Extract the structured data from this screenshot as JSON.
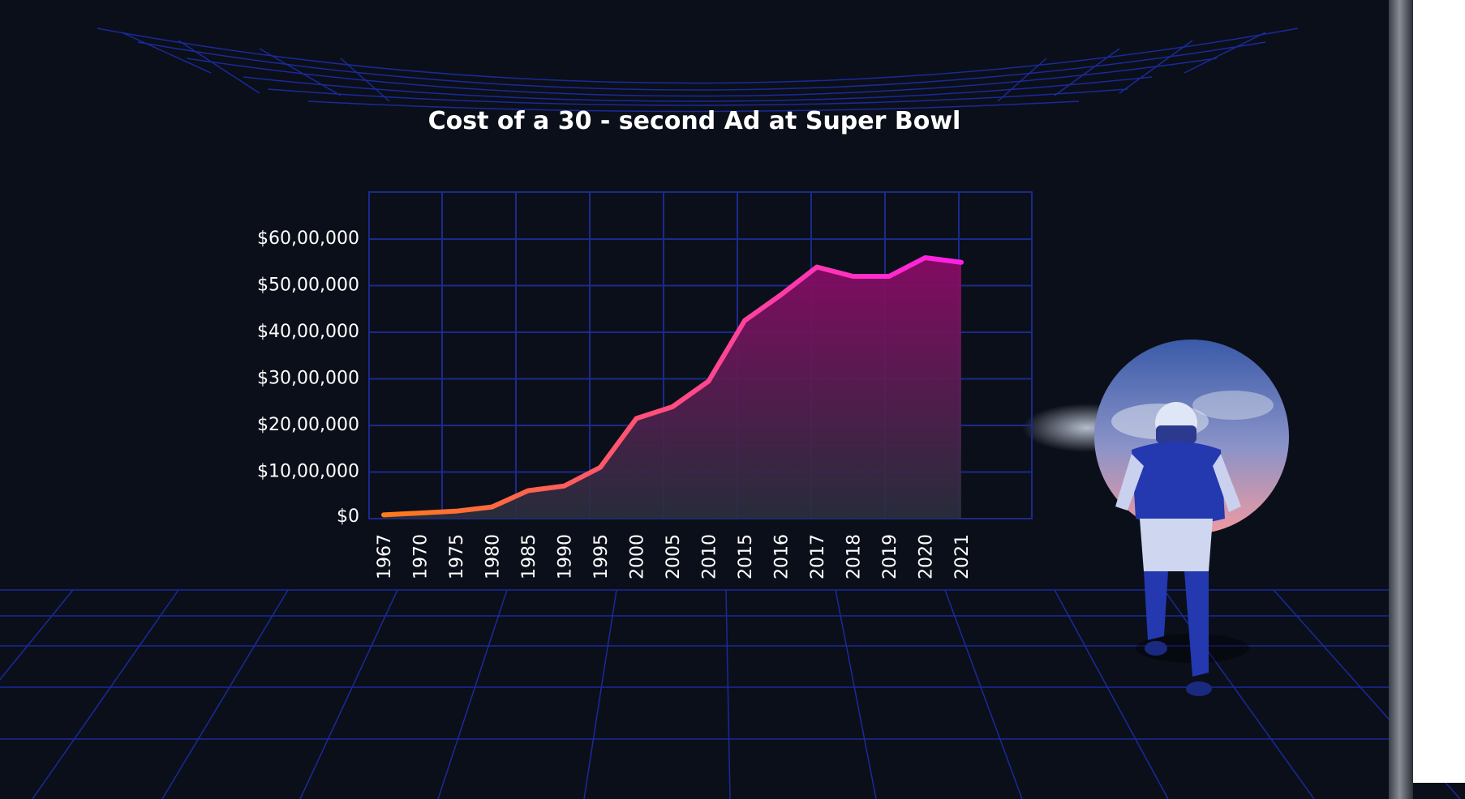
{
  "chart_data": {
    "type": "area",
    "title": "Cost of a 30 - second Ad at Super Bowl",
    "categories": [
      "1967",
      "1970",
      "1975",
      "1980",
      "1985",
      "1990",
      "1995",
      "2000",
      "2005",
      "2010",
      "2015",
      "2016",
      "2017",
      "2018",
      "2019",
      "2020",
      "2021"
    ],
    "series": [
      {
        "values": [
          80000,
          120000,
          160000,
          250000,
          600000,
          700000,
          1100000,
          2150000,
          2400000,
          2950000,
          4250000,
          4800000,
          5400000,
          5200000,
          5200000,
          5600000,
          5500000
        ]
      }
    ],
    "y_ticks": [
      {
        "value": 0,
        "label": "$0"
      },
      {
        "value": 1000000,
        "label": "$10,00,000"
      },
      {
        "value": 2000000,
        "label": "$20,00,000"
      },
      {
        "value": 3000000,
        "label": "$30,00,000"
      },
      {
        "value": 4000000,
        "label": "$40,00,000"
      },
      {
        "value": 5000000,
        "label": "$50,00,000"
      },
      {
        "value": 6000000,
        "label": "$60,00,000"
      }
    ],
    "ylim": [
      0,
      7000000
    ],
    "grid": true,
    "xlabel": "",
    "ylabel": "",
    "colors": {
      "line_start": "#ff7a1a",
      "line_end": "#ff1fe8",
      "fill": "#8a0a66",
      "grid": "#1b2a8c"
    }
  },
  "decor": {
    "background": "#0b0f19",
    "player-icon": "football-player-illustration"
  }
}
